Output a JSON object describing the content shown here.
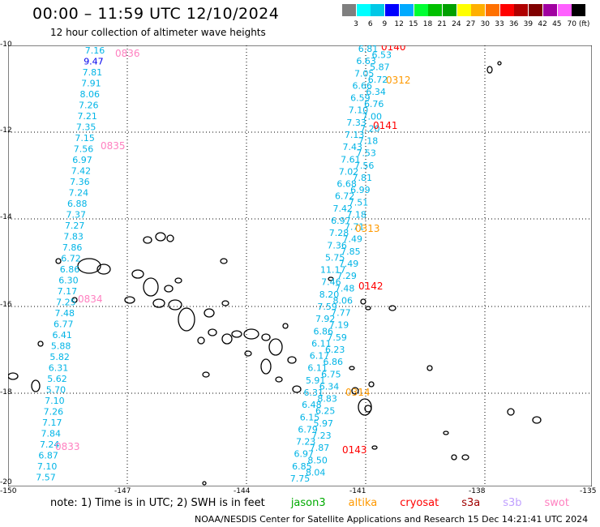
{
  "header": {
    "title": "00:00 – 11:59 UTC 12/10/2024",
    "subtitle": "12 hour collection of altimeter wave heights"
  },
  "legend": {
    "labels": [
      "3",
      "6",
      "9",
      "12",
      "15",
      "18",
      "21",
      "24",
      "27",
      "30",
      "33",
      "36",
      "39",
      "42",
      "45",
      "70 (ft)"
    ],
    "colors": [
      "#7f7f7f",
      "#00ffff",
      "#00c8e6",
      "#0000ff",
      "#00aaff",
      "#00ff33",
      "#00c000",
      "#00a000",
      "#ffff00",
      "#ffb000",
      "#ff7000",
      "#ff0000",
      "#b00000",
      "#800000",
      "#a000a0",
      "#ff60ff",
      "#000000"
    ]
  },
  "map": {
    "lat_labels": [
      "-10",
      "-12",
      "-14",
      "-16",
      "-18",
      "-20"
    ],
    "lon_labels": [
      "-150",
      "-147",
      "-144",
      "-141",
      "-138",
      "-135"
    ],
    "passes": [
      {
        "label": "0836",
        "color": "#ff80c0"
      },
      {
        "label": "0835",
        "color": "#ff80c0"
      },
      {
        "label": "0834",
        "color": "#ff80c0"
      },
      {
        "label": "0833",
        "color": "#ff80c0"
      },
      {
        "label": "0140",
        "color": "#ff0000"
      },
      {
        "label": "0312",
        "color": "#ff9900"
      },
      {
        "label": "0141",
        "color": "#ff0000"
      },
      {
        "label": "0313",
        "color": "#ff9900"
      },
      {
        "label": "0142",
        "color": "#ff0000"
      },
      {
        "label": "0314",
        "color": "#ff9900"
      },
      {
        "label": "0143",
        "color": "#ff0000"
      }
    ],
    "track_a_values": [
      "7.16",
      "9.47",
      "7.81",
      "7.91",
      "8.06",
      "7.26",
      "7.21",
      "7.35",
      "7.15",
      "7.56",
      "6.97",
      "7.42",
      "7.36",
      "7.24",
      "6.88",
      "7.37",
      "7.27",
      "7.83",
      "7.86",
      "6.72",
      "6.86",
      "6.30",
      "7.17",
      "7.25",
      "7.48",
      "6.77",
      "6.41",
      "5.88",
      "5.82",
      "6.31",
      "5.62",
      "5.70",
      "7.10",
      "7.26",
      "7.17",
      "7.84",
      "7.24",
      "6.87",
      "7.10",
      "7.57"
    ],
    "track_b_values": [
      "6.81",
      "6.53",
      "6.63",
      "5.87",
      "7.05",
      "6.72",
      "6.66",
      "6.34",
      "6.59",
      "6.76",
      "7.10",
      "7.00",
      "7.33",
      "7.20",
      "7.13",
      "7.18",
      "7.43",
      "7.53",
      "7.61",
      "7.56",
      "7.02",
      "7.81",
      "6.68",
      "6.99",
      "6.72",
      "7.51",
      "7.42",
      "7.18",
      "6.97",
      "7.71",
      "7.28",
      "7.49",
      "7.36",
      "7.85",
      "5.75",
      "7.49",
      "11.17",
      "7.29",
      "7.46",
      "7.48",
      "8.20",
      "8.06",
      "7.59",
      "7.77",
      "7.92",
      "7.19",
      "6.86",
      "7.59",
      "6.11",
      "6.23",
      "6.17",
      "6.86",
      "6.11",
      "6.75",
      "5.91",
      "6.34",
      "6.31",
      "8.83",
      "6.48",
      "6.25",
      "6.15",
      "5.97",
      "6.79",
      "7.23",
      "7.23",
      "7.87",
      "6.97",
      "8.50",
      "6.85",
      "8.04",
      "7.75"
    ]
  },
  "footer": {
    "note_prefix": "note:  1) Time is in UTC; 2) SWH is in feet",
    "satellites": [
      {
        "name": "jason3",
        "color": "#00aa00"
      },
      {
        "name": "altika",
        "color": "#ff9900"
      },
      {
        "name": "cryosat",
        "color": "#ff0000"
      },
      {
        "name": "s3a",
        "color": "#a00000"
      },
      {
        "name": "s3b",
        "color": "#c0a0ff"
      },
      {
        "name": "swot",
        "color": "#ff80c0"
      }
    ],
    "credit": "NOAA/NESDIS Center for Satellite Applications and Research    15 Dec 14:21:41 UTC 2024"
  }
}
